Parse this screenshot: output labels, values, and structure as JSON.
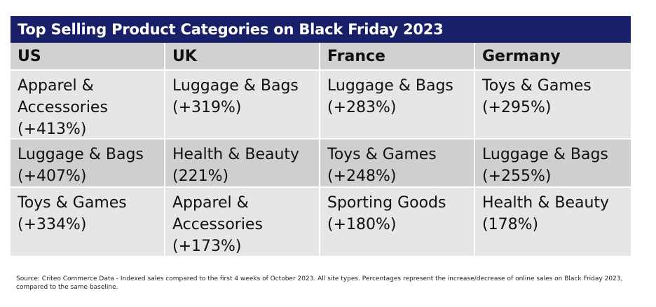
{
  "chart_data": {
    "type": "table",
    "title": "Top Selling Product Categories on Black Friday 2023",
    "columns": [
      "US",
      "UK",
      "France",
      "Germany"
    ],
    "rows": [
      [
        "Apparel &\nAccessories\n(+413%)",
        "Luggage & Bags\n(+319%)",
        "Luggage & Bags\n(+283%)",
        "Toys & Games\n(+295%)"
      ],
      [
        "Luggage & Bags\n(+407%)",
        "Health & Beauty\n(221%)",
        "Toys & Games\n(+248%)",
        "Luggage & Bags\n(+255%)"
      ],
      [
        "Toys & Games\n(+334%)",
        "Apparel &\nAccessories\n(+173%)",
        "Sporting Goods\n(+180%)",
        "Health & Beauty\n(178%)"
      ]
    ],
    "source": "Source: Criteo Commerce Data - Indexed sales compared to the first 4 weeks of October 2023. All site types. Percentages represent the increase/decrease of online sales on Black Friday 2023, compared to the same baseline."
  },
  "colors": {
    "title_bar": "#1a1f6a",
    "header_row": "#d1d1d4",
    "row_light": "#e6e6e8",
    "row_dark": "#cfcfd2"
  }
}
